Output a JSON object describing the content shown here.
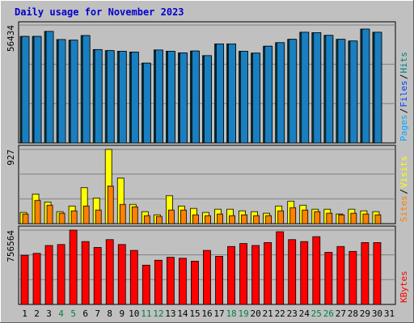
{
  "chart_data": [
    {
      "type": "bar",
      "title": "Daily usage for November 2023",
      "categories": [
        "1",
        "2",
        "3",
        "4",
        "5",
        "6",
        "7",
        "8",
        "9",
        "10",
        "11",
        "12",
        "13",
        "14",
        "15",
        "16",
        "17",
        "18",
        "19",
        "20",
        "21",
        "22",
        "23",
        "24",
        "25",
        "26",
        "27",
        "28",
        "29",
        "30",
        "31"
      ],
      "weekend_days": [
        "4",
        "5",
        "11",
        "12",
        "18",
        "19",
        "25",
        "26"
      ],
      "ymax_label": "56434",
      "ylim": [
        0,
        56434
      ],
      "side_labels": [
        "Pages",
        "/",
        "Files",
        "/",
        "Hits"
      ],
      "side_colors": [
        "#00aaff",
        "#000000",
        "#0044ff",
        "#000000",
        "#008080"
      ],
      "series": [
        {
          "name": "Hits",
          "color": "#00c8c8",
          "values": [
            51000,
            51000,
            53400,
            49500,
            49200,
            51400,
            44700,
            44200,
            43900,
            43500,
            38200,
            44500,
            43900,
            43100,
            44000,
            41800,
            47400,
            47400,
            43900,
            43000,
            46300,
            48000,
            49600,
            53000,
            52800,
            51500,
            49600,
            48800,
            54500,
            53000,
            null
          ]
        },
        {
          "name": "Files",
          "color": "#2a9fe0",
          "values": [
            50800,
            50800,
            53100,
            49300,
            49000,
            51200,
            44500,
            44000,
            43700,
            43300,
            38000,
            44300,
            43700,
            42900,
            43800,
            41600,
            47200,
            47200,
            43700,
            42800,
            46100,
            47800,
            49400,
            52800,
            52600,
            51300,
            49400,
            48600,
            54300,
            52800,
            null
          ]
        },
        {
          "name": "Pages",
          "color": "#1a7fc0",
          "values": [
            51000,
            51000,
            53400,
            49500,
            49200,
            51400,
            44700,
            44200,
            43900,
            43500,
            38200,
            44500,
            43900,
            43100,
            44000,
            41800,
            47400,
            47400,
            43900,
            43000,
            46300,
            48000,
            49600,
            53000,
            52800,
            51500,
            49600,
            48800,
            54500,
            53000,
            null
          ]
        }
      ]
    },
    {
      "type": "bar",
      "title": "",
      "ymax_label": "927",
      "ylim": [
        0,
        927
      ],
      "side_labels": [
        "Sites",
        "/",
        "Visits"
      ],
      "side_colors": [
        "#ff8000",
        "#000000",
        "#ffff00"
      ],
      "series": [
        {
          "name": "Visits",
          "color": "#ffff00",
          "values": [
            140,
            370,
            270,
            150,
            220,
            450,
            320,
            927,
            570,
            240,
            150,
            110,
            350,
            220,
            190,
            140,
            180,
            180,
            160,
            150,
            130,
            220,
            280,
            230,
            180,
            180,
            120,
            180,
            160,
            150,
            null
          ]
        },
        {
          "name": "Sites",
          "color": "#ff8000",
          "values": [
            120,
            290,
            230,
            130,
            160,
            220,
            170,
            470,
            240,
            210,
            100,
            90,
            170,
            170,
            110,
            100,
            120,
            100,
            110,
            100,
            100,
            160,
            200,
            170,
            150,
            130,
            110,
            130,
            120,
            110,
            null
          ]
        }
      ]
    },
    {
      "type": "bar",
      "title": "",
      "ymax_label": "756564",
      "ylim": [
        0,
        756564
      ],
      "side_labels": [
        "KBytes"
      ],
      "side_colors": [
        "#ff0000"
      ],
      "series": [
        {
          "name": "KBytes",
          "color": "#ff0000",
          "values": [
            500000,
            520000,
            600000,
            610000,
            756564,
            640000,
            580000,
            660000,
            610000,
            550000,
            400000,
            450000,
            480000,
            470000,
            440000,
            550000,
            490000,
            590000,
            620000,
            600000,
            630000,
            740000,
            660000,
            640000,
            690000,
            530000,
            590000,
            540000,
            630000,
            630000,
            null
          ]
        }
      ]
    }
  ],
  "colors": {
    "title": "#0000cc",
    "day_weekday": "#000000",
    "day_weekend": "#008040",
    "panel_bg": "#c0c0c0",
    "grid": "#808080"
  }
}
